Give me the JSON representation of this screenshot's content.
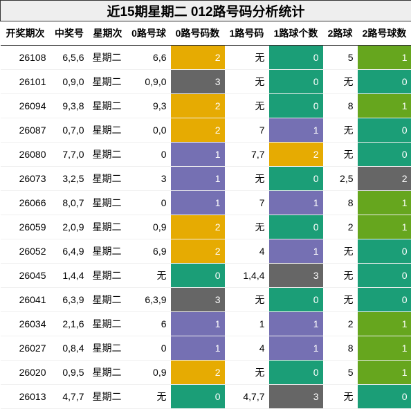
{
  "header": {
    "title": "近15期星期二 012路号码分析统计"
  },
  "table": {
    "columns": [
      "开奖期次",
      "中奖号",
      "星期次",
      "0路号球",
      "0路号码数",
      "1路号码",
      "1路球个数",
      "2路球",
      "2路号球数"
    ],
    "rows": [
      [
        "26108",
        "6,5,6",
        "星期二",
        "6,6",
        "2",
        "无",
        "0",
        "5",
        "1"
      ],
      [
        "26101",
        "0,9,0",
        "星期二",
        "0,9,0",
        "3",
        "无",
        "0",
        "无",
        "0"
      ],
      [
        "26094",
        "9,3,8",
        "星期二",
        "9,3",
        "2",
        "无",
        "0",
        "8",
        "1"
      ],
      [
        "26087",
        "0,7,0",
        "星期二",
        "0,0",
        "2",
        "7",
        "1",
        "无",
        "0"
      ],
      [
        "26080",
        "7,7,0",
        "星期二",
        "0",
        "1",
        "7,7",
        "2",
        "无",
        "0"
      ],
      [
        "26073",
        "3,2,5",
        "星期二",
        "3",
        "1",
        "无",
        "0",
        "2,5",
        "2"
      ],
      [
        "26066",
        "8,0,7",
        "星期二",
        "0",
        "1",
        "7",
        "1",
        "8",
        "1"
      ],
      [
        "26059",
        "2,0,9",
        "星期二",
        "0,9",
        "2",
        "无",
        "0",
        "2",
        "1"
      ],
      [
        "26052",
        "6,4,9",
        "星期二",
        "6,9",
        "2",
        "4",
        "1",
        "无",
        "0"
      ],
      [
        "26045",
        "1,4,4",
        "星期二",
        "无",
        "0",
        "1,4,4",
        "3",
        "无",
        "0"
      ],
      [
        "26041",
        "6,3,9",
        "星期二",
        "6,3,9",
        "3",
        "无",
        "0",
        "无",
        "0"
      ],
      [
        "26034",
        "2,1,6",
        "星期二",
        "6",
        "1",
        "1",
        "1",
        "2",
        "1"
      ],
      [
        "26027",
        "0,8,4",
        "星期二",
        "0",
        "1",
        "4",
        "1",
        "8",
        "1"
      ],
      [
        "26020",
        "0,9,5",
        "星期二",
        "0,9",
        "2",
        "无",
        "0",
        "5",
        "1"
      ],
      [
        "26013",
        "4,7,7",
        "星期二",
        "无",
        "0",
        "4,7,7",
        "3",
        "无",
        "0"
      ]
    ],
    "highlight_colors": [
      [
        "#e6ab02",
        "#1b9e77",
        "#66a61e"
      ],
      [
        "#666666",
        "#1b9e77",
        "#1b9e77"
      ],
      [
        "#e6ab02",
        "#1b9e77",
        "#66a61e"
      ],
      [
        "#e6ab02",
        "#7570b3",
        "#1b9e77"
      ],
      [
        "#7570b3",
        "#e6ab02",
        "#1b9e77"
      ],
      [
        "#7570b3",
        "#1b9e77",
        "#666666"
      ],
      [
        "#7570b3",
        "#7570b3",
        "#66a61e"
      ],
      [
        "#e6ab02",
        "#1b9e77",
        "#66a61e"
      ],
      [
        "#e6ab02",
        "#7570b3",
        "#1b9e77"
      ],
      [
        "#1b9e77",
        "#666666",
        "#1b9e77"
      ],
      [
        "#666666",
        "#1b9e77",
        "#1b9e77"
      ],
      [
        "#7570b3",
        "#7570b3",
        "#66a61e"
      ],
      [
        "#7570b3",
        "#7570b3",
        "#66a61e"
      ],
      [
        "#e6ab02",
        "#1b9e77",
        "#66a61e"
      ],
      [
        "#1b9e77",
        "#666666",
        "#1b9e77"
      ]
    ]
  }
}
